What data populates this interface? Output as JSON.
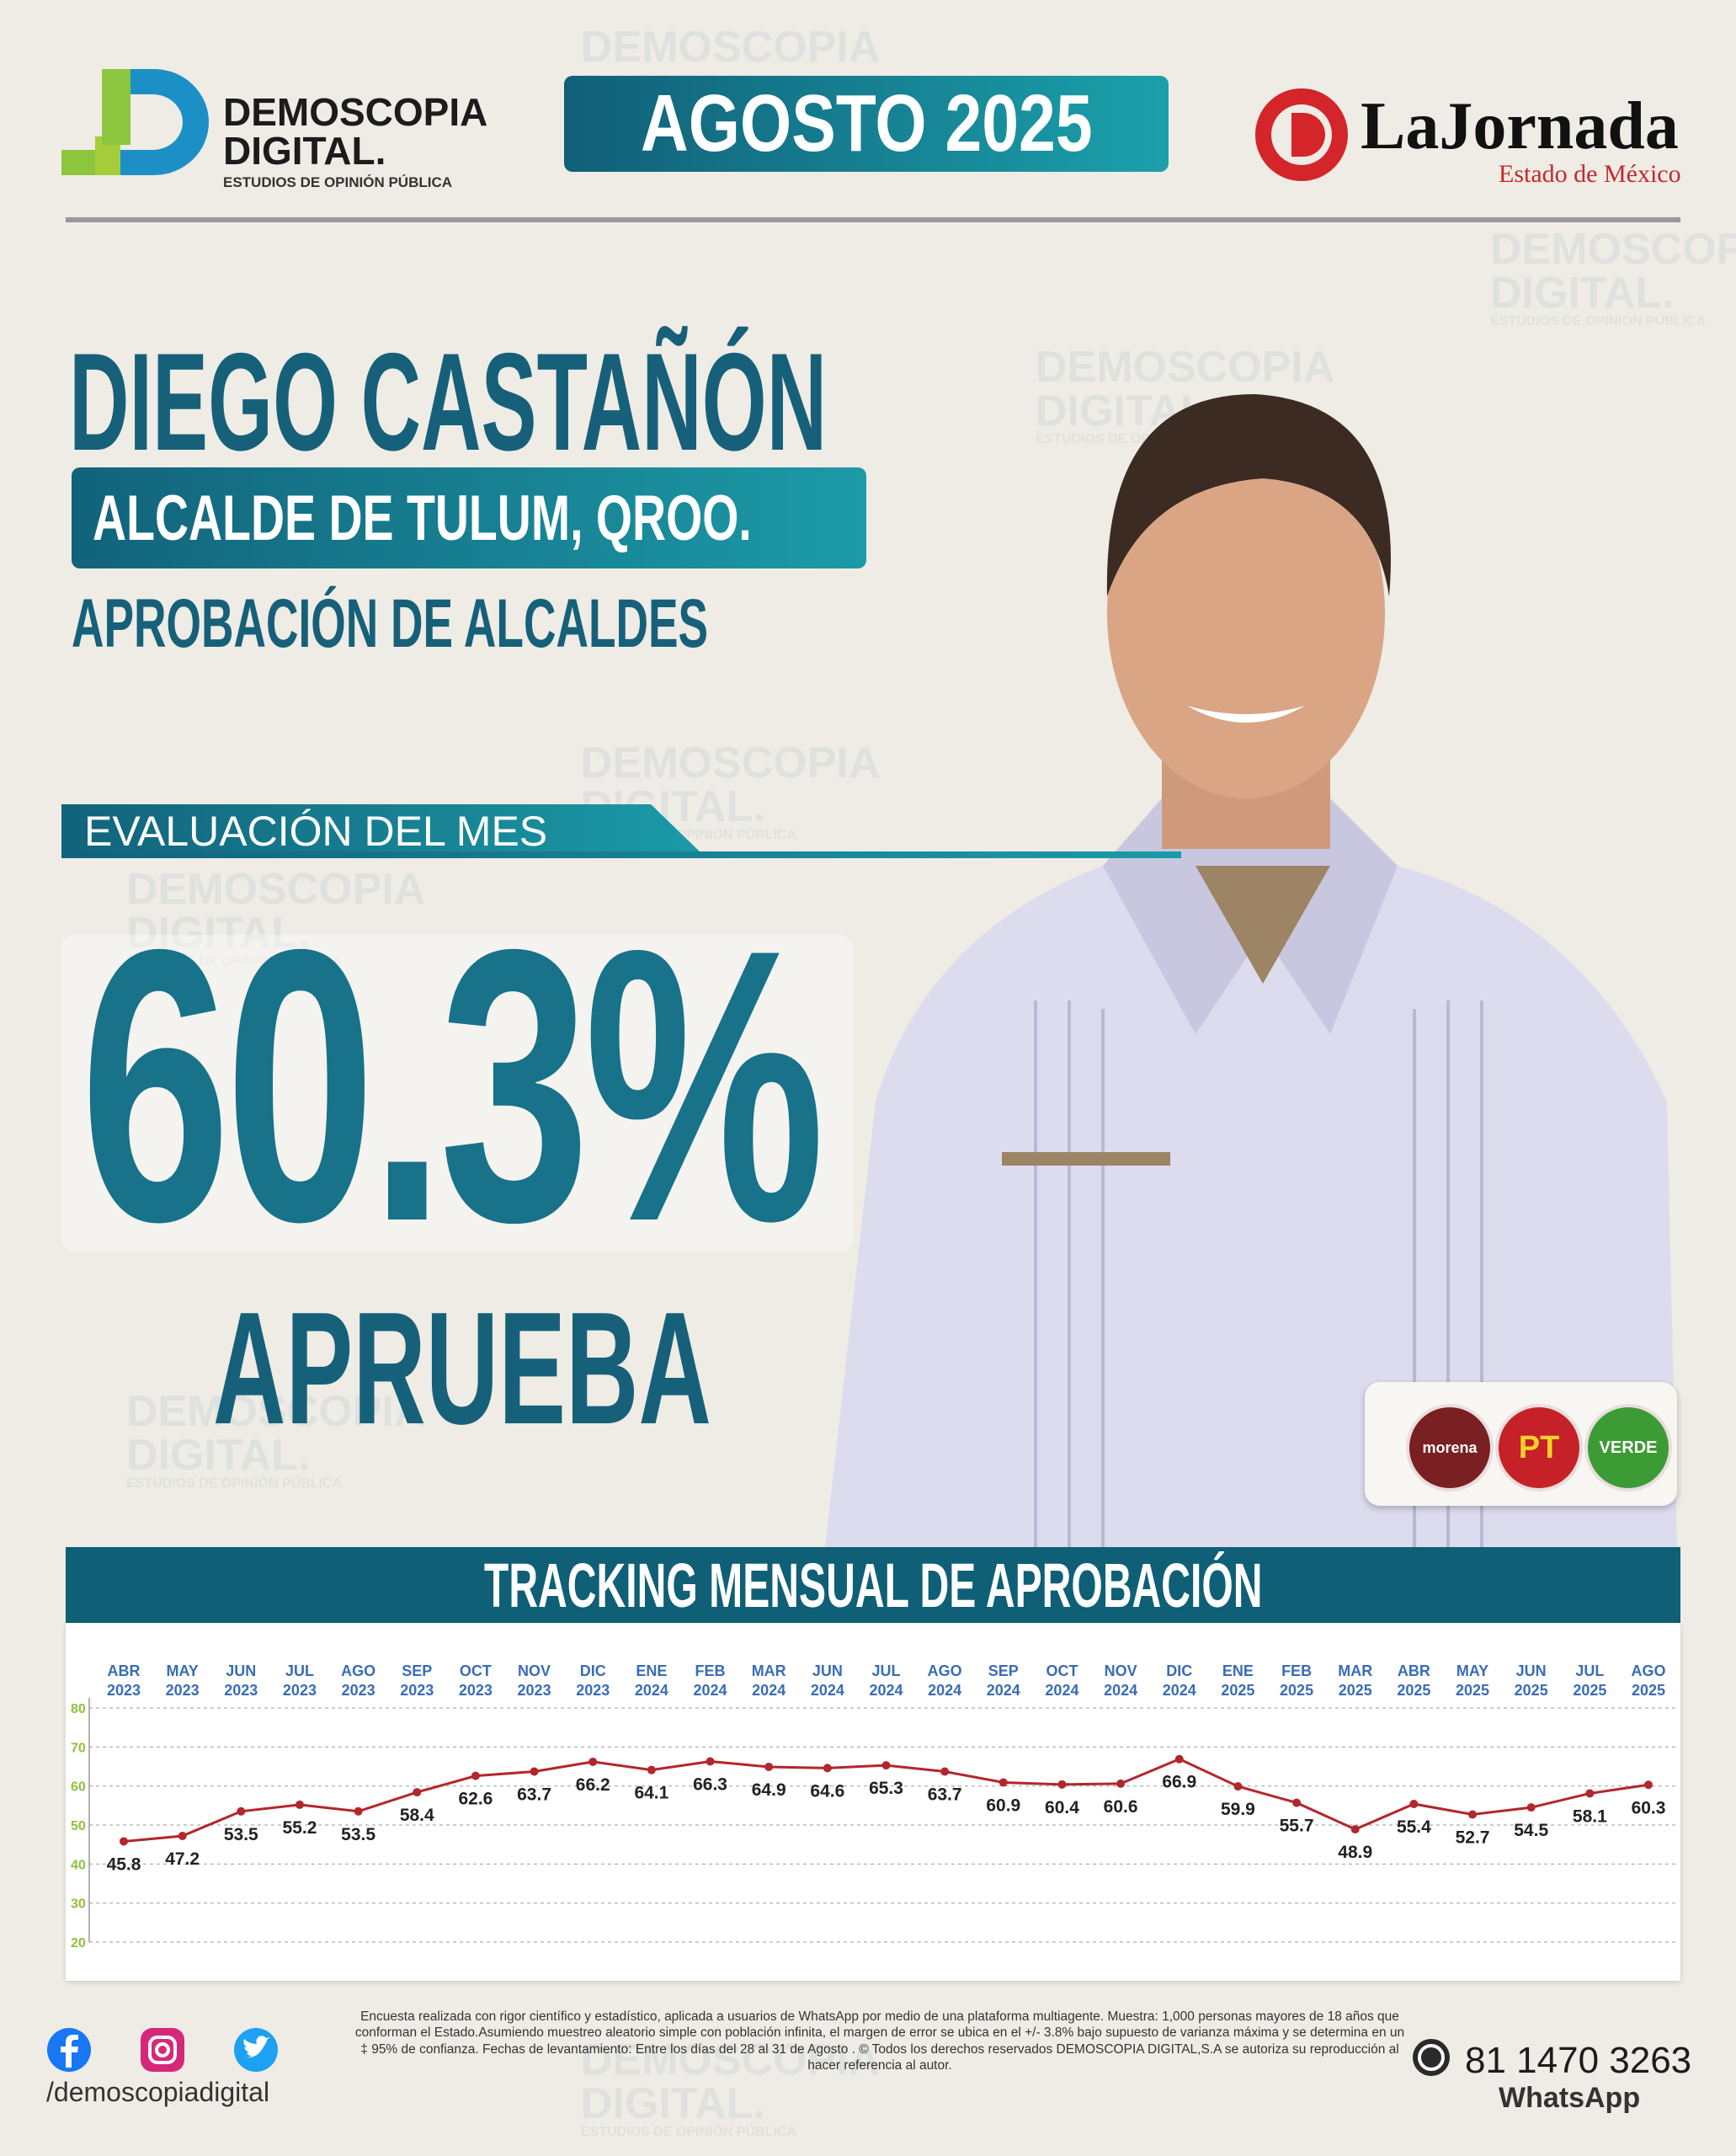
{
  "header": {
    "brand": "DEMOSCOPIA",
    "brand2": "DIGITAL.",
    "brand_sub": "ESTUDIOS DE OPINIÓN PÚBLICA",
    "month": "AGOSTO 2025",
    "partner": "LaJornada",
    "partner_sub": "Estado de México"
  },
  "person": {
    "name": "DIEGO CASTAÑÓN",
    "role": "ALCALDE DE TULUM, QROO.",
    "survey": "APROBACIÓN DE ALCALDES"
  },
  "evaluation": {
    "label": "EVALUACIÓN DEL MES",
    "value": "60.3%",
    "verdict": "APRUEBA"
  },
  "parties": [
    "morena",
    "PT",
    "VERDE"
  ],
  "chart_data": {
    "type": "line",
    "title": "TRACKING MENSUAL DE APROBACIÓN",
    "categories": [
      "ABR 2023",
      "MAY 2023",
      "JUN 2023",
      "JUL 2023",
      "AGO 2023",
      "SEP 2023",
      "OCT 2023",
      "NOV 2023",
      "DIC 2023",
      "ENE 2024",
      "FEB 2024",
      "MAR 2024",
      "JUN 2024",
      "JUL 2024",
      "AGO 2024",
      "SEP 2024",
      "OCT 2024",
      "NOV 2024",
      "DIC 2024",
      "ENE 2025",
      "FEB 2025",
      "MAR 2025",
      "ABR 2025",
      "MAY 2025",
      "JUN 2025",
      "JUL 2025",
      "AGO 2025"
    ],
    "values": [
      45.8,
      47.2,
      53.5,
      55.2,
      53.5,
      58.4,
      62.6,
      63.7,
      66.2,
      64.1,
      66.3,
      64.9,
      64.6,
      65.3,
      63.7,
      60.9,
      60.4,
      60.6,
      66.9,
      59.9,
      55.7,
      48.9,
      55.4,
      52.7,
      54.5,
      58.1,
      60.3
    ],
    "color": "#b3262c",
    "ylim": [
      20,
      80
    ],
    "yticks": [
      20,
      30,
      40,
      50,
      60,
      70,
      80
    ],
    "grid": true
  },
  "footer": {
    "handle": "/demoscopiadigital",
    "note": "Encuesta realizada con rigor científico y estadístico, aplicada a usuarios de WhatsApp por medio de una plataforma multiagente. Muestra: 1,000 personas mayores de 18 años que conforman el Estado.Asumiendo muestreo aleatorio simple con población infinita, el margen de error se ubica en el +/- 3.8% bajo supuesto de varianza máxima y se determina en un ‡ 95% de confianza. Fechas de levantamiento: Entre los días del 28 al 31 de Agosto . © Todos los derechos reservados DEMOSCOPIA DIGITAL,S.A se autoriza su reproducción al hacer referencia al autor.",
    "phone": "81 1470 3263",
    "whatsapp": "WhatsApp"
  }
}
